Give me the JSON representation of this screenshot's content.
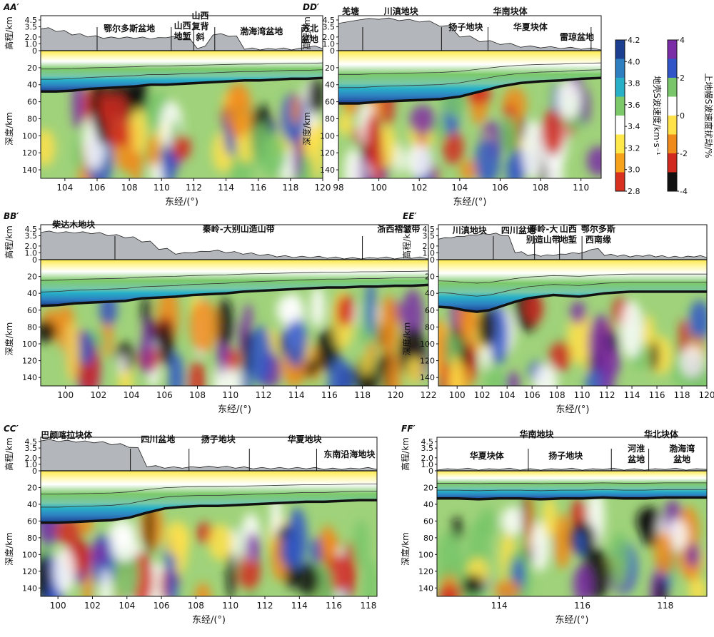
{
  "figure": {
    "y_elev_label": "高程/km",
    "y_depth_label": "深度/km",
    "x_label": "东经/(°)",
    "elev_ticks": [
      "4.5",
      "3.5",
      "2.0",
      "1.0",
      "0"
    ],
    "depth_ticks": [
      "20",
      "40",
      "60",
      "80",
      "100",
      "120",
      "140"
    ]
  },
  "colorbars": {
    "crust": {
      "label": "地壳S波速度/km·s⁻¹",
      "ticks": [
        "4.2",
        "4.0",
        "3.8",
        "3.6",
        "3.4",
        "3.2",
        "3.0",
        "2.8"
      ],
      "colors": [
        "#1d3f8f",
        "#2d7fc0",
        "#27b0c8",
        "#7cc96a",
        "#ffffff",
        "#ffe94a",
        "#f7a21b",
        "#d8311f"
      ]
    },
    "mantle": {
      "label": "上地幔S波速度扰动/%",
      "ticks": [
        "4",
        "2",
        "0",
        "-2",
        "-4"
      ],
      "colors": [
        "#7a2da6",
        "#2f55c8",
        "#78c56a",
        "#ffffff",
        "#ffe14a",
        "#f08a1a",
        "#d1291d",
        "#111111"
      ]
    }
  },
  "chart_data": [
    {
      "type": "heatmap",
      "panel": "AA′",
      "x_range": [
        102.5,
        120
      ],
      "x_ticks": [
        "104",
        "106",
        "108",
        "110",
        "112",
        "114",
        "116",
        "118",
        "120"
      ],
      "x_tick_values": [
        104,
        106,
        108,
        110,
        112,
        114,
        116,
        118,
        120
      ],
      "moho_depth": [
        48,
        48,
        47,
        45,
        44,
        43,
        42,
        40,
        40,
        39,
        38,
        37,
        36,
        35,
        35,
        34,
        33,
        33,
        32
      ],
      "topo_km": [
        3.2,
        2.8,
        2.3,
        2.0,
        1.8,
        1.8,
        1.8,
        1.7,
        1.9,
        1.7,
        0.3,
        2.3,
        2.1,
        0.2,
        0.1,
        0.2,
        0.1,
        0.5,
        0.3
      ],
      "blocks": [
        {
          "label": "鄂尔多斯盆地",
          "lines": [
            "鄂尔多斯盆地"
          ],
          "x": 108,
          "y": 44
        },
        {
          "label": "山西地堑",
          "lines": [
            "山西",
            "地堑"
          ],
          "x": 111.3,
          "y": 40
        },
        {
          "label": "山西复背斜",
          "lines": [
            "山西",
            "复背",
            "斜"
          ],
          "x": 112.4,
          "y": 26
        },
        {
          "label": "渤海湾盆地",
          "lines": [
            "渤海湾盆地"
          ],
          "x": 116.2,
          "y": 48
        },
        {
          "label": "苏北盆地",
          "lines": [
            "苏北",
            "盆地"
          ],
          "x": 119.2,
          "y": 44
        }
      ],
      "boundaries": [
        106,
        110.6,
        112.0,
        113.3,
        118.7
      ]
    },
    {
      "type": "heatmap",
      "panel": "DD′",
      "x_range": [
        98,
        111
      ],
      "x_ticks": [
        "98",
        "100",
        "102",
        "104",
        "106",
        "108",
        "110"
      ],
      "x_tick_values": [
        98,
        100,
        102,
        104,
        106,
        108,
        110
      ],
      "moho_depth": [
        62,
        62,
        60,
        59,
        58,
        57,
        54,
        48,
        42,
        38,
        36,
        35,
        33,
        32
      ],
      "topo_km": [
        4.0,
        4.5,
        4.6,
        4.4,
        4.2,
        3.6,
        2.0,
        1.3,
        0.9,
        0.5,
        0.4,
        0.3,
        0.2,
        0.1
      ],
      "blocks": [
        {
          "label": "羌塘",
          "lines": [
            "羌塘"
          ],
          "x": 98.6,
          "y": 20
        },
        {
          "label": "川滇地块",
          "lines": [
            "川滇地块"
          ],
          "x": 101.1,
          "y": 20
        },
        {
          "label": "华南块体",
          "lines": [
            "华南块体"
          ],
          "x": 106.5,
          "y": 20
        },
        {
          "label": "扬子地块",
          "lines": [
            "扬子地块"
          ],
          "x": 104.3,
          "y": 42
        },
        {
          "label": "华夏块体",
          "lines": [
            "华夏块体"
          ],
          "x": 107.5,
          "y": 42
        },
        {
          "label": "雷琼盆地",
          "lines": [
            "雷琼盆地"
          ],
          "x": 109.8,
          "y": 56
        }
      ],
      "boundaries": [
        99.2,
        103.1,
        105.4,
        110.5
      ]
    },
    {
      "type": "heatmap",
      "panel": "BB′",
      "x_range": [
        98.5,
        122
      ],
      "x_ticks": [
        "100",
        "102",
        "104",
        "106",
        "108",
        "110",
        "112",
        "114",
        "116",
        "118",
        "120",
        "122"
      ],
      "x_tick_values": [
        100,
        102,
        104,
        106,
        108,
        110,
        112,
        114,
        116,
        118,
        120,
        122
      ],
      "moho_depth": [
        55,
        54,
        52,
        51,
        50,
        49,
        46,
        45,
        44,
        42,
        41,
        40,
        38,
        37,
        36,
        35,
        34,
        33,
        33,
        32,
        32,
        31,
        31,
        30
      ],
      "topo_km": [
        4.0,
        3.9,
        3.9,
        3.8,
        3.5,
        3.2,
        2.6,
        1.5,
        0.8,
        1.0,
        1.2,
        1.0,
        0.8,
        0.6,
        0.4,
        0.3,
        0.3,
        0.2,
        0.1,
        0.1,
        0.2,
        0.1,
        0.2,
        0.1
      ],
      "blocks": [
        {
          "label": "柴达木地块",
          "lines": [
            "柴达木地块"
          ],
          "x": 100.5,
          "y": 319
        },
        {
          "label": "秦岭-大别山造山带",
          "lines": [
            "秦岭-大别山造山带"
          ],
          "x": 110.5,
          "y": 325
        },
        {
          "label": "浙西褶皱带",
          "lines": [
            "浙西褶皱带"
          ],
          "x": 120.2,
          "y": 325
        }
      ],
      "boundaries": [
        103,
        118
      ]
    },
    {
      "type": "heatmap",
      "panel": "EE′",
      "x_range": [
        98.5,
        120
      ],
      "x_ticks": [
        "100",
        "102",
        "104",
        "106",
        "108",
        "110",
        "112",
        "114",
        "116",
        "118",
        "120"
      ],
      "x_tick_values": [
        100,
        102,
        104,
        106,
        108,
        110,
        112,
        114,
        116,
        118,
        120
      ],
      "moho_depth": [
        56,
        57,
        60,
        62,
        60,
        55,
        50,
        46,
        44,
        42,
        43,
        44,
        42,
        40,
        39,
        38,
        38,
        38,
        38,
        38,
        38,
        38
      ],
      "topo_km": [
        3.0,
        3.2,
        3.4,
        3.6,
        3.7,
        3.5,
        1.0,
        0.6,
        0.5,
        0.6,
        0.8,
        0.9,
        1.5,
        0.6,
        0.5,
        0.4,
        0.5,
        0.4,
        0.3,
        0.3,
        0.4,
        0.3
      ],
      "blocks": [
        {
          "label": "川滇地块",
          "lines": [
            "川滇地块"
          ],
          "x": 101,
          "y": 327
        },
        {
          "label": "四川盆地",
          "lines": [
            "四川盆地"
          ],
          "x": 104.9,
          "y": 327
        },
        {
          "label": "秦岭-大别造山带",
          "lines": [
            "秦岭-大",
            "别造山带"
          ],
          "x": 106.9,
          "y": 325
        },
        {
          "label": "山西地堑",
          "lines": [
            "山西",
            "地堑"
          ],
          "x": 108.9,
          "y": 325
        },
        {
          "label": "鄂尔多斯西南缘",
          "lines": [
            "鄂尔多斯",
            "西南缘"
          ],
          "x": 111.3,
          "y": 325
        }
      ],
      "boundaries": [
        102.9,
        106.2,
        108.2,
        110
      ]
    },
    {
      "type": "heatmap",
      "panel": "CC′",
      "x_range": [
        99,
        118.5
      ],
      "x_ticks": [
        "100",
        "102",
        "104",
        "106",
        "108",
        "110",
        "112",
        "114",
        "116",
        "118"
      ],
      "x_tick_values": [
        100,
        102,
        104,
        106,
        108,
        110,
        112,
        114,
        116,
        118
      ],
      "moho_depth": [
        62,
        62,
        61,
        60,
        59,
        56,
        50,
        45,
        43,
        42,
        42,
        41,
        40,
        39,
        38,
        37,
        37,
        36,
        35,
        35
      ],
      "topo_km": [
        4.6,
        4.5,
        4.4,
        4.3,
        4.0,
        3.6,
        0.6,
        0.4,
        0.4,
        0.5,
        0.5,
        0.4,
        0.3,
        0.3,
        0.3,
        0.3,
        0.2,
        0.2,
        0.3,
        0.2
      ],
      "blocks": [
        {
          "label": "巴颜喀拉块体",
          "lines": [
            "巴颜喀拉块体"
          ],
          "x": 100.5,
          "y": 614
        },
        {
          "label": "四川盆地",
          "lines": [
            "四川盆地"
          ],
          "x": 105.8,
          "y": 620
        },
        {
          "label": "扬子地块",
          "lines": [
            "扬子地块"
          ],
          "x": 109.3,
          "y": 620
        },
        {
          "label": "华夏地块",
          "lines": [
            "华夏地块"
          ],
          "x": 114.3,
          "y": 620
        },
        {
          "label": "东南沿海地块",
          "lines": [
            "东南沿海地块"
          ],
          "x": 116.9,
          "y": 641
        }
      ],
      "boundaries": [
        104.2,
        107.6,
        111.1,
        115
      ]
    },
    {
      "type": "heatmap",
      "panel": "FF′",
      "x_range": [
        112.5,
        119
      ],
      "x_ticks": [
        "114",
        "116",
        "118"
      ],
      "x_tick_values": [
        114,
        116,
        118
      ],
      "moho_depth": [
        33,
        33,
        34,
        33,
        33,
        34,
        33,
        33,
        32,
        33,
        33,
        32,
        32,
        32
      ],
      "topo_km": [
        0.1,
        0.2,
        0.1,
        0.2,
        0.1,
        0.1,
        0.2,
        0.1,
        0.2,
        0.1,
        0.1,
        0.2,
        0.1,
        0.2
      ],
      "blocks": [
        {
          "label": "华南地块",
          "lines": [
            "华南地块"
          ],
          "x": 114.9,
          "y": 613
        },
        {
          "label": "华北块体",
          "lines": [
            "华北块体"
          ],
          "x": 117.9,
          "y": 613
        },
        {
          "label": "华夏块体",
          "lines": [
            "华夏块体"
          ],
          "x": 113.7,
          "y": 643
        },
        {
          "label": "扬子地块",
          "lines": [
            "扬子地块"
          ],
          "x": 115.6,
          "y": 643
        },
        {
          "label": "河淮盆地",
          "lines": [
            "河淮",
            "盆地"
          ],
          "x": 117.3,
          "y": 633
        },
        {
          "label": "渤海湾盆地",
          "lines": [
            "渤海湾",
            "盆地"
          ],
          "x": 118.4,
          "y": 633
        }
      ],
      "boundaries": [
        114.7,
        116.7,
        117.6
      ]
    }
  ]
}
